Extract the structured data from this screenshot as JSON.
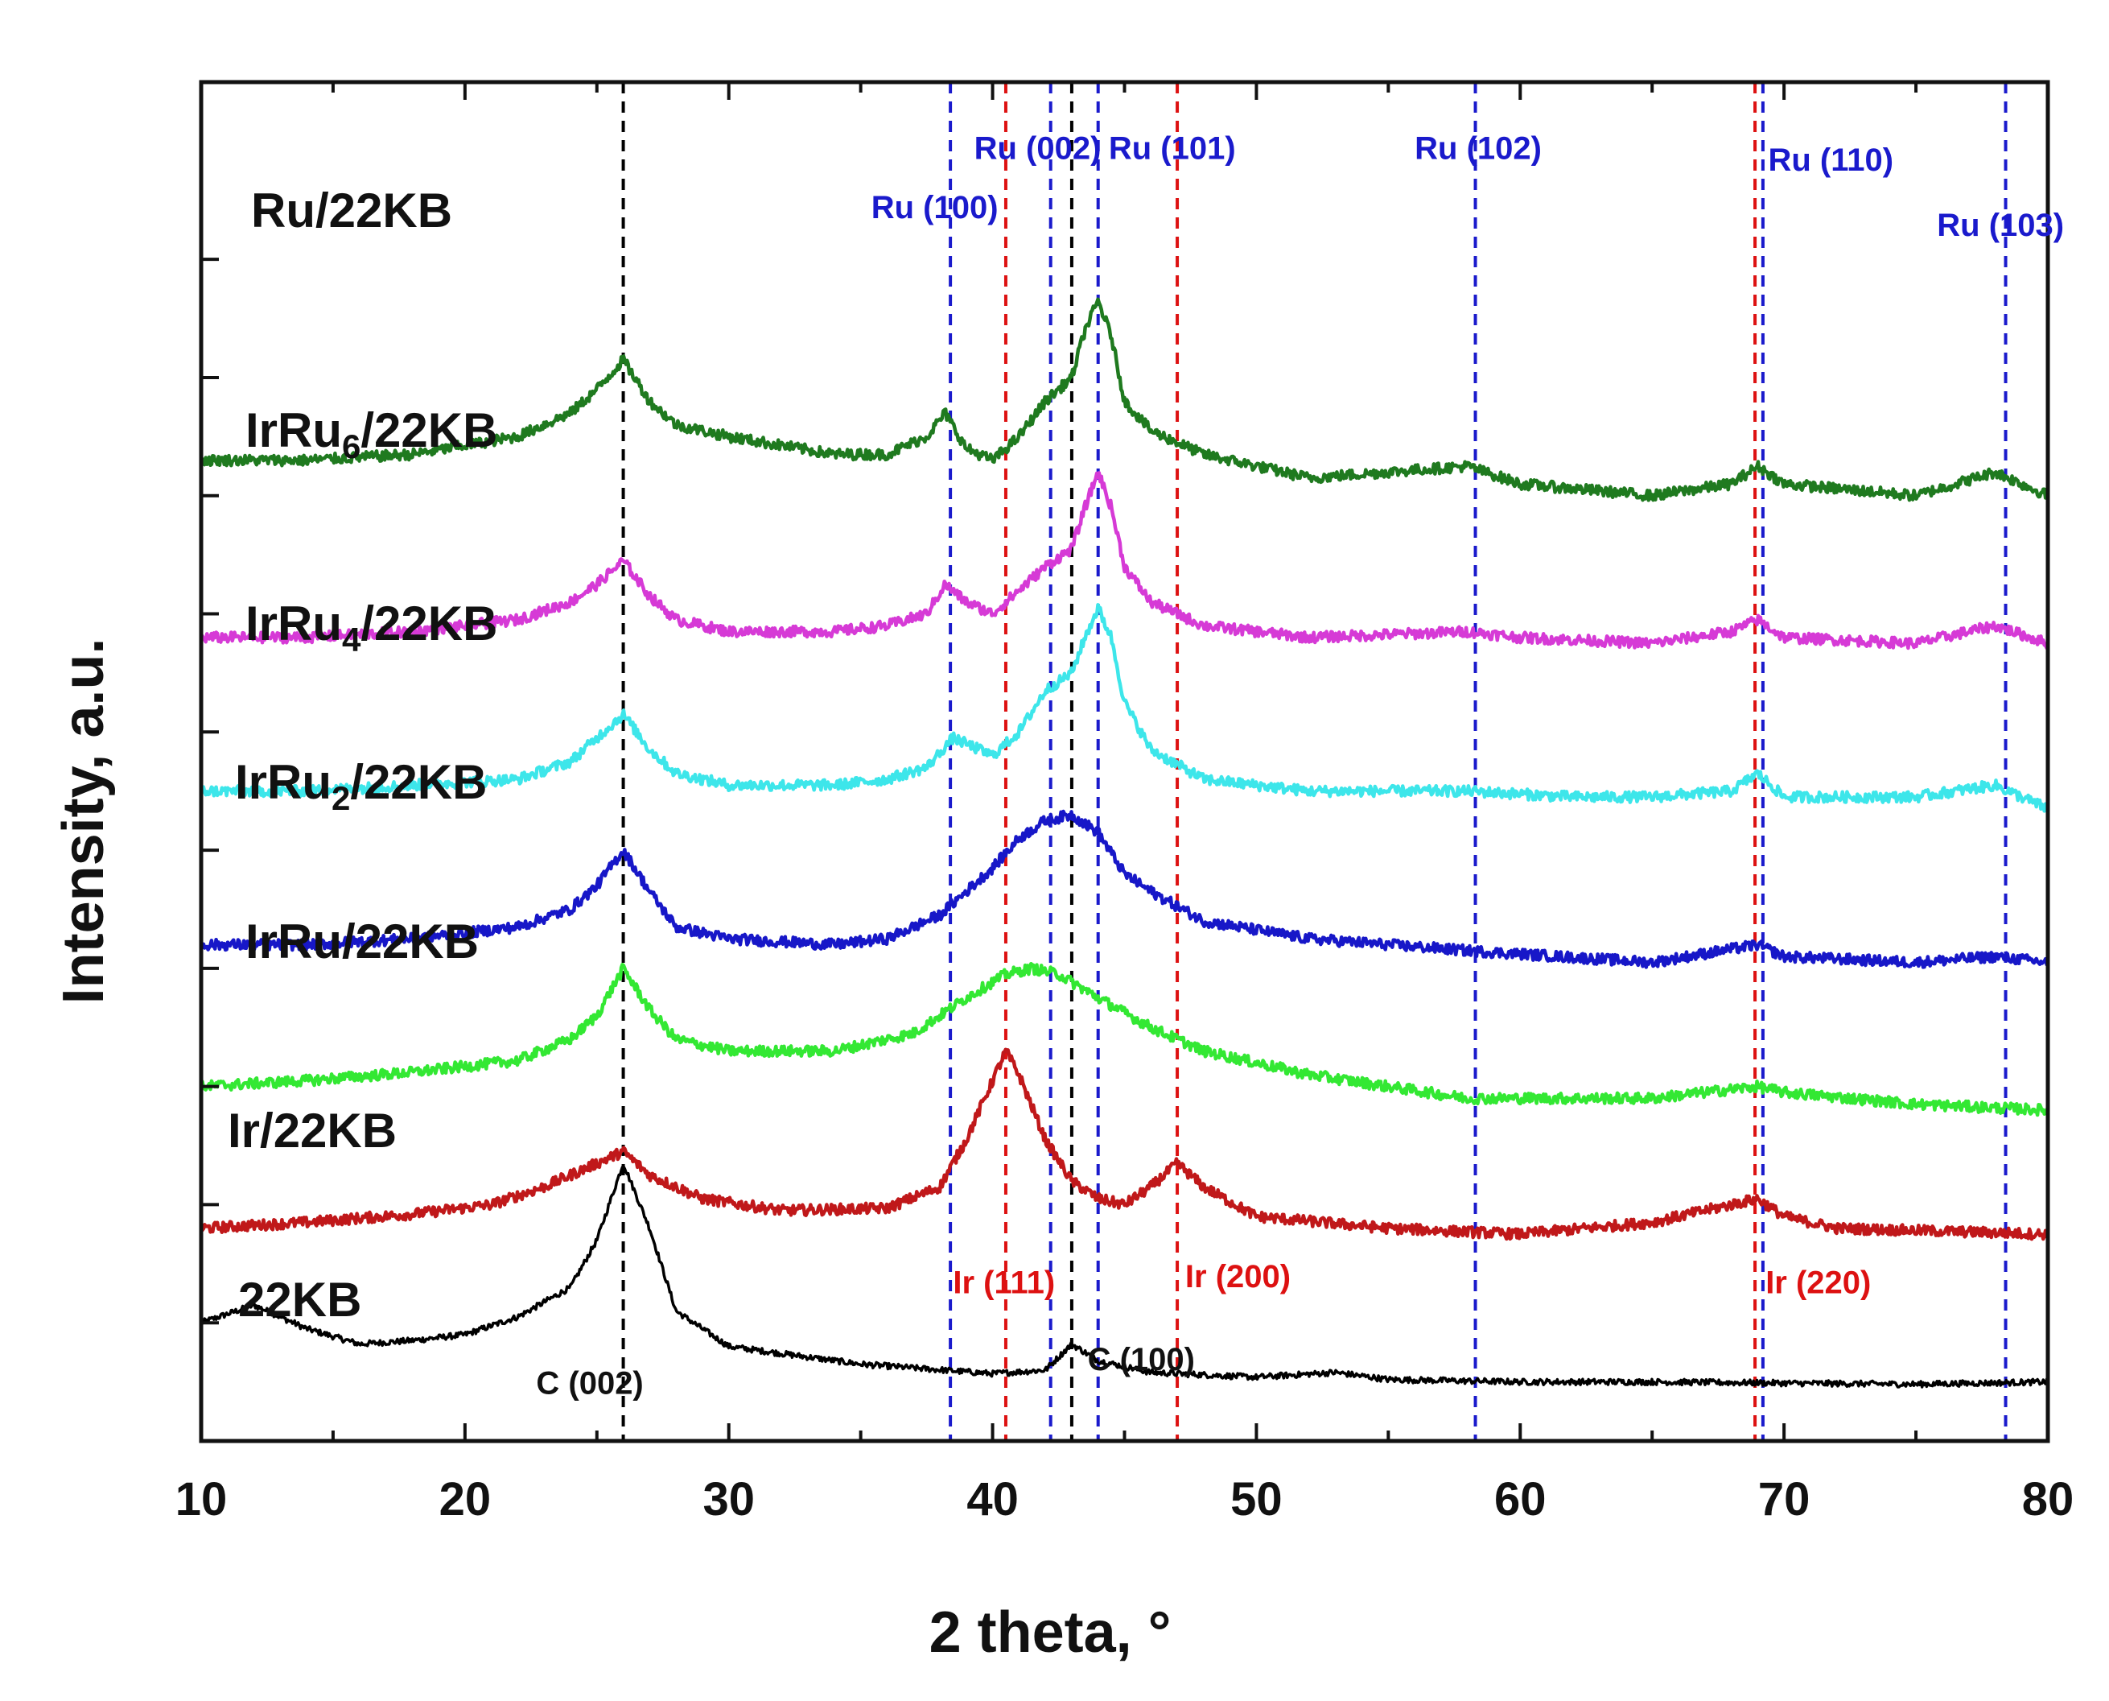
{
  "chart_data": {
    "type": "line",
    "title": "",
    "xlabel": "2 theta, °",
    "ylabel": "Intensity, a.u.",
    "xlim": [
      10,
      80
    ],
    "xticks": [
      10,
      20,
      30,
      40,
      50,
      60,
      70,
      80
    ],
    "ylim": [
      0,
      11.5
    ],
    "y_ticks_marked": [
      1,
      2,
      3,
      4,
      5,
      6,
      7,
      8,
      9,
      10
    ],
    "y_tick_labels_shown": false,
    "series": [
      {
        "name": "22KB",
        "label_main": "22KB",
        "label_sub": "",
        "label_rest": "",
        "color": "#000000",
        "baseline": 0.4,
        "points": [
          [
            10,
            0.6
          ],
          [
            12,
            0.75
          ],
          [
            14,
            0.55
          ],
          [
            16,
            0.42
          ],
          [
            18,
            0.45
          ],
          [
            20,
            0.5
          ],
          [
            22,
            0.65
          ],
          [
            24,
            0.9
          ],
          [
            25,
            1.3
          ],
          [
            26,
            1.95
          ],
          [
            27,
            1.4
          ],
          [
            28,
            0.7
          ],
          [
            30,
            0.4
          ],
          [
            35,
            0.25
          ],
          [
            40,
            0.17
          ],
          [
            42,
            0.2
          ],
          [
            43,
            0.42
          ],
          [
            44,
            0.28
          ],
          [
            46,
            0.18
          ],
          [
            50,
            0.14
          ],
          [
            53,
            0.18
          ],
          [
            55,
            0.12
          ],
          [
            60,
            0.1
          ],
          [
            65,
            0.1
          ],
          [
            70,
            0.09
          ],
          [
            75,
            0.08
          ],
          [
            80,
            0.1
          ]
        ]
      },
      {
        "name": "Ir/22KB",
        "label_main": "Ir/22KB",
        "label_sub": "",
        "label_rest": "",
        "color": "#c0181a",
        "baseline": 1.8,
        "points": [
          [
            10,
            0.0
          ],
          [
            14,
            0.05
          ],
          [
            18,
            0.12
          ],
          [
            21,
            0.2
          ],
          [
            23,
            0.35
          ],
          [
            25,
            0.55
          ],
          [
            26,
            0.65
          ],
          [
            27,
            0.45
          ],
          [
            29,
            0.25
          ],
          [
            32,
            0.15
          ],
          [
            36,
            0.17
          ],
          [
            38,
            0.35
          ],
          [
            39,
            0.75
          ],
          [
            40,
            1.25
          ],
          [
            40.5,
            1.5
          ],
          [
            41,
            1.3
          ],
          [
            42,
            0.75
          ],
          [
            43,
            0.4
          ],
          [
            44,
            0.25
          ],
          [
            45,
            0.2
          ],
          [
            46,
            0.35
          ],
          [
            47,
            0.55
          ],
          [
            48,
            0.35
          ],
          [
            50,
            0.1
          ],
          [
            55,
            0.0
          ],
          [
            60,
            -0.05
          ],
          [
            65,
            0.05
          ],
          [
            67,
            0.15
          ],
          [
            69,
            0.25
          ],
          [
            70,
            0.1
          ],
          [
            72,
            0.0
          ],
          [
            80,
            -0.05
          ]
        ]
      },
      {
        "name": "IrRu/22KB",
        "label_main": "IrRu/22KB",
        "label_sub": "",
        "label_rest": "",
        "color": "#33e833",
        "baseline": 3.0,
        "points": [
          [
            10,
            0.0
          ],
          [
            14,
            0.05
          ],
          [
            18,
            0.12
          ],
          [
            22,
            0.22
          ],
          [
            24,
            0.4
          ],
          [
            25,
            0.6
          ],
          [
            26,
            1.0
          ],
          [
            27,
            0.65
          ],
          [
            28,
            0.4
          ],
          [
            30,
            0.3
          ],
          [
            34,
            0.3
          ],
          [
            37,
            0.45
          ],
          [
            39,
            0.75
          ],
          [
            40.5,
            0.95
          ],
          [
            41.5,
            1.0
          ],
          [
            42.5,
            0.95
          ],
          [
            44,
            0.75
          ],
          [
            46,
            0.5
          ],
          [
            48,
            0.3
          ],
          [
            52,
            0.1
          ],
          [
            58,
            -0.1
          ],
          [
            65,
            -0.1
          ],
          [
            69,
            0.0
          ],
          [
            70,
            -0.05
          ],
          [
            75,
            -0.15
          ],
          [
            80,
            -0.2
          ]
        ]
      },
      {
        "name": "IrRu2/22KB",
        "label_main": "IrRu",
        "label_sub": "2",
        "label_rest": "/22KB",
        "color": "#1717c8",
        "baseline": 4.2,
        "points": [
          [
            10,
            0.0
          ],
          [
            14,
            0.0
          ],
          [
            18,
            0.05
          ],
          [
            22,
            0.15
          ],
          [
            24,
            0.3
          ],
          [
            25,
            0.5
          ],
          [
            26,
            0.8
          ],
          [
            27,
            0.45
          ],
          [
            28,
            0.15
          ],
          [
            30,
            0.05
          ],
          [
            34,
            0.0
          ],
          [
            36,
            0.05
          ],
          [
            38,
            0.25
          ],
          [
            40,
            0.65
          ],
          [
            41,
            0.9
          ],
          [
            42,
            1.05
          ],
          [
            43,
            1.1
          ],
          [
            44,
            0.95
          ],
          [
            45,
            0.6
          ],
          [
            46,
            0.45
          ],
          [
            48,
            0.2
          ],
          [
            52,
            0.05
          ],
          [
            58,
            -0.05
          ],
          [
            65,
            -0.15
          ],
          [
            69,
            0.0
          ],
          [
            70,
            -0.1
          ],
          [
            75,
            -0.15
          ],
          [
            78,
            -0.1
          ],
          [
            80,
            -0.15
          ]
        ]
      },
      {
        "name": "IrRu4/22KB",
        "label_main": "IrRu",
        "label_sub": "4",
        "label_rest": "/22KB",
        "color": "#3de6ea",
        "baseline": 5.5,
        "points": [
          [
            10,
            0.0
          ],
          [
            14,
            0.0
          ],
          [
            18,
            0.05
          ],
          [
            22,
            0.1
          ],
          [
            24,
            0.25
          ],
          [
            25,
            0.45
          ],
          [
            26,
            0.65
          ],
          [
            27,
            0.35
          ],
          [
            28,
            0.15
          ],
          [
            30,
            0.05
          ],
          [
            34,
            0.05
          ],
          [
            36,
            0.1
          ],
          [
            37.5,
            0.2
          ],
          [
            38.5,
            0.45
          ],
          [
            39,
            0.4
          ],
          [
            40,
            0.3
          ],
          [
            41,
            0.5
          ],
          [
            42,
            0.85
          ],
          [
            43,
            1.0
          ],
          [
            43.5,
            1.3
          ],
          [
            44,
            1.55
          ],
          [
            44.5,
            1.3
          ],
          [
            45,
            0.75
          ],
          [
            46,
            0.35
          ],
          [
            48,
            0.1
          ],
          [
            52,
            0.0
          ],
          [
            58,
            0.0
          ],
          [
            62,
            -0.05
          ],
          [
            65,
            -0.05
          ],
          [
            68,
            0.0
          ],
          [
            69,
            0.15
          ],
          [
            70,
            -0.05
          ],
          [
            75,
            -0.05
          ],
          [
            78,
            0.05
          ],
          [
            80,
            -0.15
          ]
        ]
      },
      {
        "name": "IrRu6/22KB",
        "label_main": "IrRu",
        "label_sub": "6",
        "label_rest": "/22KB",
        "color": "#d63ad6",
        "baseline": 6.8,
        "points": [
          [
            10,
            0.0
          ],
          [
            14,
            0.0
          ],
          [
            18,
            0.05
          ],
          [
            22,
            0.15
          ],
          [
            24,
            0.3
          ],
          [
            25,
            0.45
          ],
          [
            26,
            0.65
          ],
          [
            27,
            0.35
          ],
          [
            28,
            0.15
          ],
          [
            30,
            0.05
          ],
          [
            34,
            0.05
          ],
          [
            36,
            0.1
          ],
          [
            37.5,
            0.2
          ],
          [
            38.2,
            0.45
          ],
          [
            39,
            0.3
          ],
          [
            40,
            0.2
          ],
          [
            41,
            0.4
          ],
          [
            42,
            0.6
          ],
          [
            43,
            0.75
          ],
          [
            43.5,
            1.1
          ],
          [
            44,
            1.4
          ],
          [
            44.5,
            1.1
          ],
          [
            45,
            0.6
          ],
          [
            46,
            0.3
          ],
          [
            48,
            0.1
          ],
          [
            52,
            0.0
          ],
          [
            58,
            0.05
          ],
          [
            60,
            0.0
          ],
          [
            65,
            -0.05
          ],
          [
            68,
            0.05
          ],
          [
            69,
            0.15
          ],
          [
            70,
            0.0
          ],
          [
            75,
            -0.05
          ],
          [
            78,
            0.1
          ],
          [
            80,
            -0.05
          ]
        ]
      },
      {
        "name": "Ru/22KB",
        "label_main": "Ru/22KB",
        "label_sub": "",
        "label_rest": "",
        "color": "#1f7a1f",
        "baseline": 8.3,
        "points": [
          [
            10,
            0.0
          ],
          [
            14,
            0.0
          ],
          [
            18,
            0.05
          ],
          [
            22,
            0.2
          ],
          [
            24,
            0.4
          ],
          [
            25,
            0.6
          ],
          [
            26,
            0.85
          ],
          [
            27,
            0.5
          ],
          [
            28,
            0.3
          ],
          [
            30,
            0.2
          ],
          [
            34,
            0.05
          ],
          [
            36,
            0.05
          ],
          [
            37.5,
            0.2
          ],
          [
            38.2,
            0.4
          ],
          [
            39,
            0.1
          ],
          [
            40,
            0.0
          ],
          [
            41,
            0.2
          ],
          [
            42,
            0.5
          ],
          [
            43,
            0.7
          ],
          [
            43.5,
            1.1
          ],
          [
            44,
            1.35
          ],
          [
            44.5,
            1.05
          ],
          [
            45,
            0.5
          ],
          [
            46,
            0.25
          ],
          [
            48,
            0.05
          ],
          [
            52,
            -0.15
          ],
          [
            58,
            -0.05
          ],
          [
            60,
            -0.2
          ],
          [
            65,
            -0.3
          ],
          [
            68,
            -0.2
          ],
          [
            69,
            -0.05
          ],
          [
            70,
            -0.2
          ],
          [
            75,
            -0.3
          ],
          [
            78,
            -0.1
          ],
          [
            80,
            -0.3
          ]
        ]
      }
    ],
    "reference_lines": [
      {
        "x": 26.0,
        "color": "#000000"
      },
      {
        "x": 38.4,
        "color": "#1a1acc"
      },
      {
        "x": 40.5,
        "color": "#dd1111"
      },
      {
        "x": 42.2,
        "color": "#1a1acc"
      },
      {
        "x": 43.0,
        "color": "#000000"
      },
      {
        "x": 44.0,
        "color": "#1a1acc"
      },
      {
        "x": 47.0,
        "color": "#dd1111"
      },
      {
        "x": 58.3,
        "color": "#1a1acc"
      },
      {
        "x": 68.9,
        "color": "#dd1111"
      },
      {
        "x": 69.2,
        "color": "#1a1acc"
      },
      {
        "x": 78.4,
        "color": "#1a1acc"
      }
    ],
    "annotations": [
      {
        "text": "Ru (100)",
        "x": 35.4,
        "y": 10.35,
        "color": "#1a1acc"
      },
      {
        "text": "Ru (002)",
        "x": 39.3,
        "y": 10.85,
        "color": "#1a1acc"
      },
      {
        "text": "Ru (101)",
        "x": 44.4,
        "y": 10.85,
        "color": "#1a1acc"
      },
      {
        "text": "Ru (102)",
        "x": 56.0,
        "y": 10.85,
        "color": "#1a1acc"
      },
      {
        "text": "Ru (110)",
        "x": 69.4,
        "y": 10.75,
        "color": "#1a1acc"
      },
      {
        "text": "Ru (103)",
        "x": 75.8,
        "y": 10.2,
        "color": "#1a1acc"
      },
      {
        "text": "Ir (111)",
        "x": 38.5,
        "y": 1.25,
        "color": "#dd1111"
      },
      {
        "text": "Ir (200)",
        "x": 47.3,
        "y": 1.3,
        "color": "#dd1111"
      },
      {
        "text": "Ir (220)",
        "x": 69.3,
        "y": 1.25,
        "color": "#dd1111"
      },
      {
        "text": "C (002)",
        "x": 22.7,
        "y": 0.4,
        "color": "#111111"
      },
      {
        "text": "C (100)",
        "x": 43.6,
        "y": 0.6,
        "color": "#111111"
      }
    ]
  }
}
